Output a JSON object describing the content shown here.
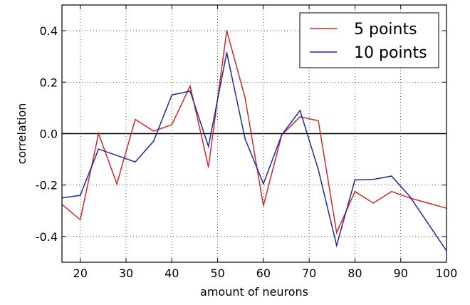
{
  "chart_data": {
    "type": "line",
    "xlabel": "amount of neurons",
    "ylabel": "correlation",
    "xlim": [
      16,
      100
    ],
    "ylim": [
      -0.5,
      0.5
    ],
    "xticks": [
      20,
      30,
      40,
      50,
      60,
      70,
      80,
      90,
      100
    ],
    "yticks": [
      -0.4,
      -0.2,
      0.0,
      0.2,
      0.4
    ],
    "xtick_labels": [
      "20",
      "30",
      "40",
      "50",
      "60",
      "70",
      "80",
      "90",
      "100"
    ],
    "ytick_labels": [
      "-0.4",
      "-0.2",
      "0.0",
      "0.2",
      "0.4"
    ],
    "grid": true,
    "grid_style": "dotted",
    "zero_line": true,
    "legend_position": "top-right",
    "series": [
      {
        "name": "5 points",
        "color": "#d62728",
        "x": [
          16,
          20,
          24,
          28,
          32,
          36,
          40,
          44,
          48,
          52,
          56,
          60,
          64,
          68,
          72,
          76,
          80,
          84,
          88,
          92,
          96,
          100
        ],
        "y": [
          -0.275,
          -0.335,
          0.0,
          -0.195,
          0.055,
          0.01,
          0.035,
          0.185,
          -0.13,
          0.4,
          0.14,
          -0.28,
          -0.005,
          0.065,
          0.05,
          -0.385,
          -0.225,
          -0.27,
          -0.225,
          -0.25,
          -0.27,
          -0.29
        ]
      },
      {
        "name": "10 points",
        "color": "#1f2a9c",
        "x": [
          16,
          20,
          24,
          28,
          32,
          36,
          40,
          44,
          48,
          52,
          56,
          60,
          64,
          68,
          72,
          76,
          80,
          84,
          88,
          92,
          96,
          100
        ],
        "y": [
          -0.25,
          -0.24,
          -0.06,
          -0.085,
          -0.11,
          -0.03,
          0.15,
          0.165,
          -0.05,
          0.315,
          -0.02,
          -0.195,
          -0.005,
          0.09,
          -0.14,
          -0.435,
          -0.18,
          -0.178,
          -0.165,
          -0.245,
          -0.35,
          -0.455
        ]
      }
    ]
  }
}
